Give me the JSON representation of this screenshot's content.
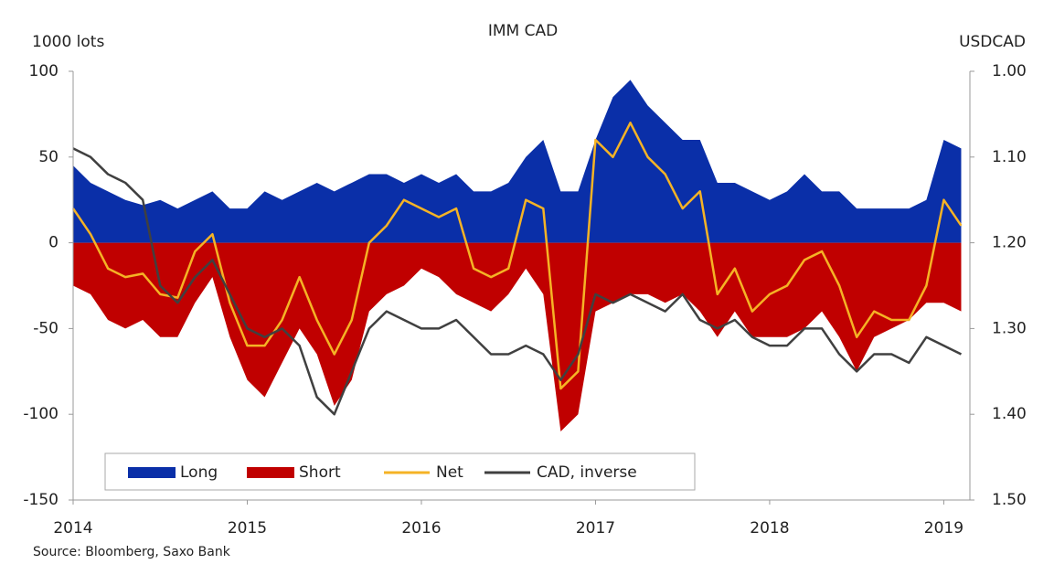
{
  "chart_data": {
    "type": "area_line",
    "title": "IMM CAD",
    "y_label": "1000 lots",
    "y2_label": "USDCAD",
    "source": "Source: Bloomberg,  Saxo Bank",
    "x": [
      2014.0,
      2014.1,
      2014.2,
      2014.3,
      2014.4,
      2014.5,
      2014.6,
      2014.7,
      2014.8,
      2014.9,
      2015.0,
      2015.1,
      2015.2,
      2015.3,
      2015.4,
      2015.5,
      2015.6,
      2015.7,
      2015.8,
      2015.9,
      2016.0,
      2016.1,
      2016.2,
      2016.3,
      2016.4,
      2016.5,
      2016.6,
      2016.7,
      2016.8,
      2016.9,
      2017.0,
      2017.1,
      2017.2,
      2017.3,
      2017.4,
      2017.5,
      2017.6,
      2017.7,
      2017.8,
      2017.9,
      2018.0,
      2018.1,
      2018.2,
      2018.3,
      2018.4,
      2018.5,
      2018.6,
      2018.7,
      2018.8,
      2018.9,
      2019.0,
      2019.1
    ],
    "xlim": [
      2014,
      2019.15
    ],
    "xticks": [
      2014,
      2015,
      2016,
      2017,
      2018,
      2019
    ],
    "ylim": [
      -150,
      100
    ],
    "yticks": [
      -150,
      -100,
      -50,
      0,
      50,
      100
    ],
    "y2lim": [
      1.5,
      1.0
    ],
    "y2ticks": [
      {
        "value": 1.5,
        "label": "1.50"
      },
      {
        "value": 1.4,
        "label": "1.40"
      },
      {
        "value": 1.3,
        "label": "1.30"
      },
      {
        "value": 1.2,
        "label": "1.20"
      },
      {
        "value": 1.1,
        "label": "1.10"
      },
      {
        "value": 1.0,
        "label": "1.00"
      }
    ],
    "series": [
      {
        "name": "Long",
        "kind": "area",
        "color": "#0a2fa8",
        "values": [
          45,
          35,
          30,
          25,
          22,
          25,
          20,
          25,
          30,
          20,
          20,
          30,
          25,
          30,
          35,
          30,
          35,
          40,
          40,
          35,
          40,
          35,
          40,
          30,
          30,
          35,
          50,
          60,
          30,
          30,
          60,
          85,
          95,
          80,
          70,
          60,
          60,
          35,
          35,
          30,
          25,
          30,
          40,
          30,
          30,
          20,
          20,
          20,
          20,
          25,
          60,
          55
        ]
      },
      {
        "name": "Short",
        "kind": "area",
        "color": "#c00000",
        "values": [
          -25,
          -30,
          -45,
          -50,
          -45,
          -55,
          -55,
          -35,
          -20,
          -55,
          -80,
          -90,
          -70,
          -50,
          -65,
          -95,
          -80,
          -40,
          -30,
          -25,
          -15,
          -20,
          -30,
          -35,
          -40,
          -30,
          -15,
          -30,
          -110,
          -100,
          -40,
          -35,
          -30,
          -30,
          -35,
          -30,
          -40,
          -55,
          -40,
          -55,
          -55,
          -55,
          -50,
          -40,
          -55,
          -75,
          -55,
          -50,
          -45,
          -35,
          -35,
          -40
        ]
      },
      {
        "name": "Net",
        "kind": "line",
        "color": "#f5b325",
        "values": [
          20,
          5,
          -15,
          -20,
          -18,
          -30,
          -32,
          -5,
          5,
          -35,
          -60,
          -60,
          -45,
          -20,
          -45,
          -65,
          -45,
          0,
          10,
          25,
          20,
          15,
          20,
          -15,
          -20,
          -15,
          25,
          20,
          -85,
          -75,
          60,
          50,
          70,
          50,
          40,
          20,
          30,
          -30,
          -15,
          -40,
          -30,
          -25,
          -10,
          -5,
          -25,
          -55,
          -40,
          -45,
          -45,
          -25,
          25,
          10
        ]
      },
      {
        "name": "CAD, inverse",
        "kind": "line",
        "axis": "y2",
        "color": "#404040",
        "values": [
          1.09,
          1.1,
          1.12,
          1.13,
          1.15,
          1.25,
          1.27,
          1.24,
          1.22,
          1.26,
          1.3,
          1.31,
          1.3,
          1.32,
          1.38,
          1.4,
          1.35,
          1.3,
          1.28,
          1.29,
          1.3,
          1.3,
          1.29,
          1.31,
          1.33,
          1.33,
          1.32,
          1.33,
          1.36,
          1.33,
          1.26,
          1.27,
          1.26,
          1.27,
          1.28,
          1.26,
          1.29,
          1.3,
          1.29,
          1.31,
          1.32,
          1.32,
          1.3,
          1.3,
          1.33,
          1.35,
          1.33,
          1.33,
          1.34,
          1.31,
          1.32,
          1.33
        ]
      }
    ]
  }
}
